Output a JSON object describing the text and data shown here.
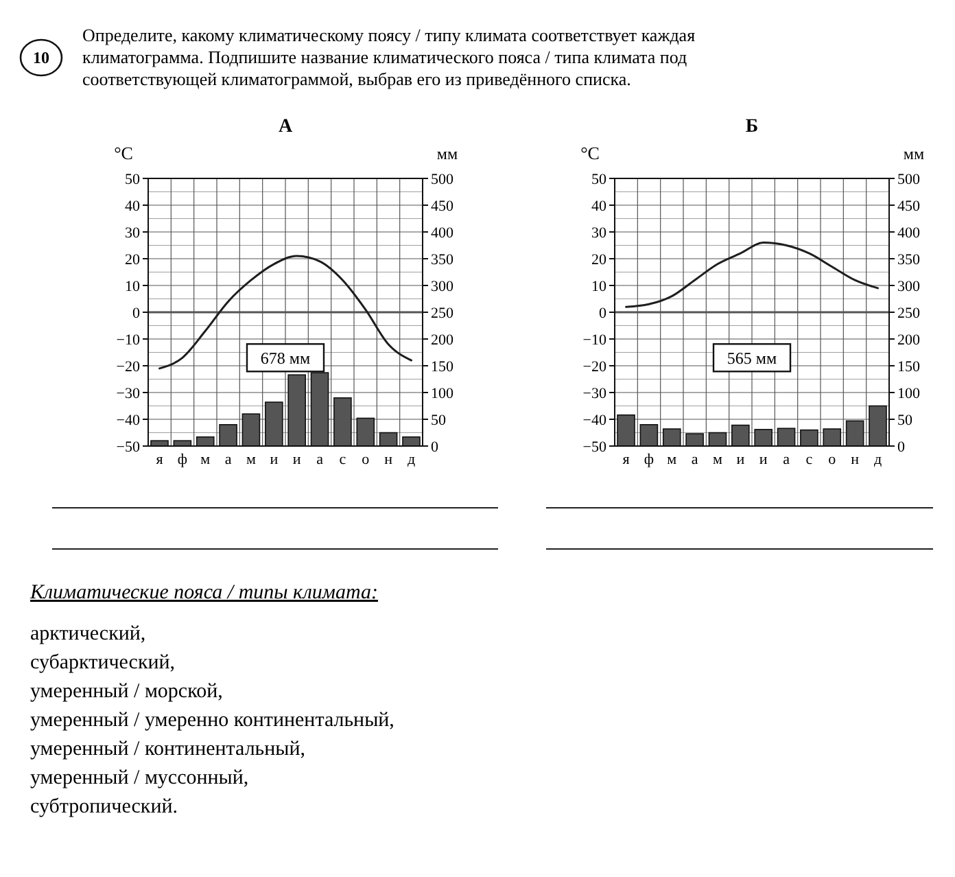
{
  "chart_data": [
    {
      "type": "bar",
      "title": "А",
      "categories": [
        "я",
        "ф",
        "м",
        "а",
        "м",
        "и",
        "и",
        "а",
        "с",
        "о",
        "н",
        "д"
      ],
      "ylabel": "°C",
      "y2label": "мм",
      "ylim": [
        -50,
        50
      ],
      "yticks": [
        -50,
        -40,
        -30,
        -20,
        -10,
        0,
        10,
        20,
        30,
        40,
        50
      ],
      "y2lim": [
        0,
        500
      ],
      "y2ticks": [
        0,
        50,
        100,
        150,
        200,
        250,
        300,
        350,
        400,
        450,
        500
      ],
      "grid": true,
      "series": [
        {
          "axis": "y2",
          "color": "#555555",
          "values": [
            10,
            10,
            17,
            40,
            60,
            82,
            133,
            137,
            90,
            52,
            25,
            17
          ]
        },
        {
          "type": "line",
          "axis": "y",
          "color": "#1e1e1e",
          "marker": "none",
          "line_style": "solid",
          "values": [
            -21,
            -17,
            -7,
            4,
            12,
            18,
            21,
            19,
            12,
            1,
            -12,
            -18
          ]
        }
      ],
      "annotations": [
        "678 мм",
        "10",
        "Определите, какому климатическому поясу / типу климата соответствует каждая климатограмма. Подпишите название климатического пояса / типа климата под соответствующей климатограммой, выбрав его из приведённого списка."
      ]
    },
    {
      "type": "bar",
      "title": "Б",
      "categories": [
        "я",
        "ф",
        "м",
        "а",
        "м",
        "и",
        "и",
        "а",
        "с",
        "о",
        "н",
        "д"
      ],
      "ylabel": "°C",
      "y2label": "мм",
      "ylim": [
        -50,
        50
      ],
      "yticks": [
        -50,
        -40,
        -30,
        -20,
        -10,
        0,
        10,
        20,
        30,
        40,
        50
      ],
      "y2lim": [
        0,
        500
      ],
      "y2ticks": [
        0,
        50,
        100,
        150,
        200,
        250,
        300,
        350,
        400,
        450,
        500
      ],
      "grid": true,
      "series": [
        {
          "axis": "y2",
          "color": "#555555",
          "values": [
            58,
            40,
            32,
            23,
            25,
            39,
            31,
            33,
            30,
            32,
            47,
            75
          ]
        },
        {
          "type": "line",
          "axis": "y",
          "color": "#1e1e1e",
          "marker": "none",
          "line_style": "solid",
          "values": [
            2,
            3,
            6,
            12,
            18,
            22,
            26,
            25,
            22,
            17,
            12,
            9
          ]
        }
      ],
      "annotations": [
        "565 мм",
        "Климатические пояса / типы климата:",
        "арктический,",
        "субарктический,",
        "умеренный / морской,",
        "умеренный / умеренно континентальный,",
        "умеренный / континентальный,",
        "умеренный / муссонный,",
        "субтропический."
      ]
    }
  ]
}
